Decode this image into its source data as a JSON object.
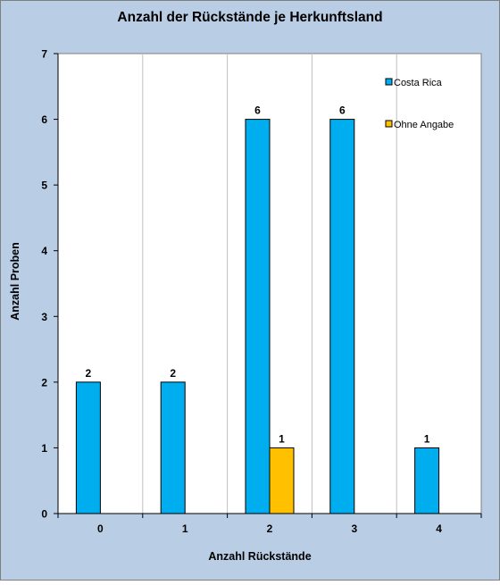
{
  "chart_data": {
    "type": "bar",
    "title": "Anzahl der Rückstände je Herkunftsland",
    "xlabel": "Anzahl Rückstände",
    "ylabel": "Anzahl Proben",
    "categories": [
      "0",
      "1",
      "2",
      "3",
      "4"
    ],
    "series": [
      {
        "name": "Costa Rica",
        "values": [
          2,
          2,
          6,
          6,
          1
        ],
        "color": "#00aeef"
      },
      {
        "name": "Ohne Angabe",
        "values": [
          0,
          0,
          1,
          0,
          0
        ],
        "color": "#ffc000"
      }
    ],
    "ylim": [
      0,
      7
    ],
    "yticks": [
      0,
      1,
      2,
      3,
      4,
      5,
      6,
      7
    ],
    "grid": "vertical",
    "legend_position": "top-right",
    "colors": {
      "outer_background": "#b9cde5",
      "plot_background": "#ffffff",
      "grid": "#c0c0c0"
    }
  }
}
